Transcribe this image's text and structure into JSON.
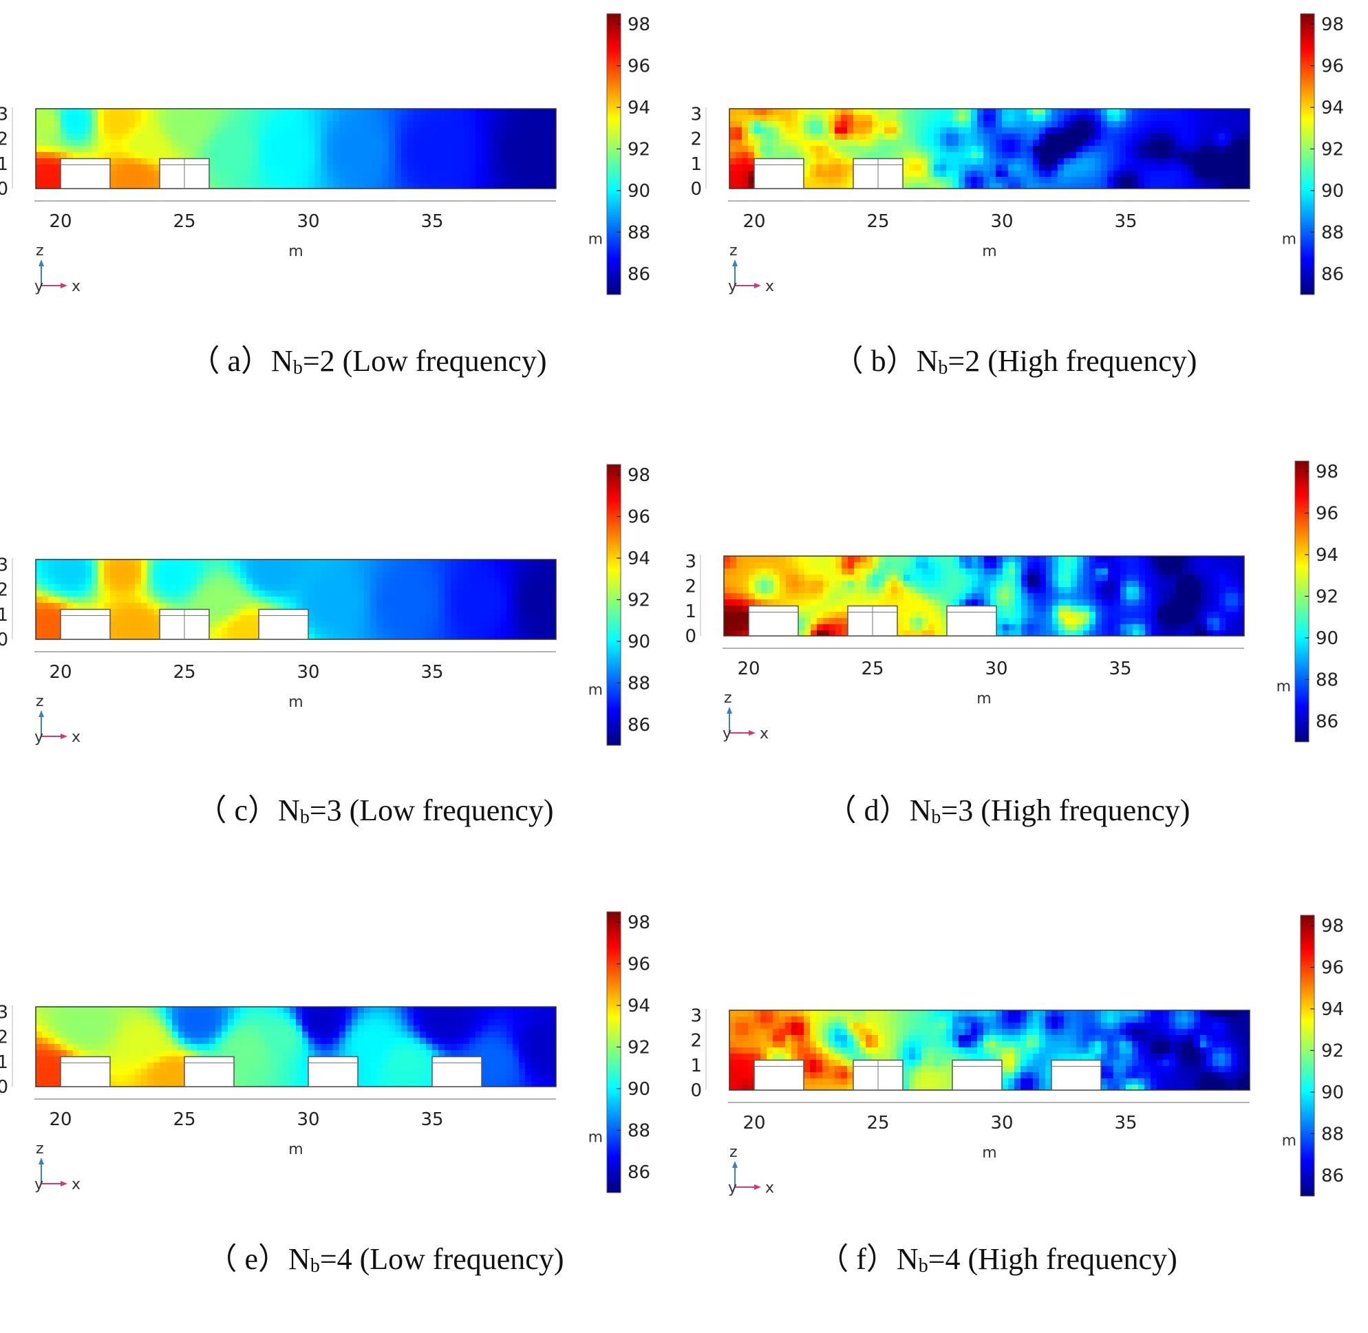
{
  "colormap_stops": [
    "#00007f",
    "#0000ff",
    "#007fff",
    "#00ffff",
    "#7fff7f",
    "#ffff00",
    "#ff7f00",
    "#ff0000",
    "#7f0000"
  ],
  "chart_data": [
    {
      "id": "a",
      "type": "heatmap",
      "frequency": "low",
      "caption": {
        "prefix": "（ a）",
        "n_base": "N",
        "n_sub": "b",
        "rest": "=2 (Low frequency)"
      },
      "x_ticks": [
        "20",
        "25",
        "30",
        "35"
      ],
      "x_ticks_values": [
        20,
        25,
        30,
        35
      ],
      "y_ticks": [
        "0",
        "1",
        "2",
        "3"
      ],
      "y_ticks_values": [
        0,
        1,
        2,
        3
      ],
      "xlabel": "m",
      "colorbar_unit": "m",
      "colorbar_ticks": [
        "86",
        "88",
        "90",
        "92",
        "94",
        "96",
        "98"
      ],
      "colorbar_ticks_values": [
        86,
        88,
        90,
        92,
        94,
        96,
        98
      ],
      "xlim": [
        19,
        40
      ],
      "zlim": [
        0,
        3.2
      ],
      "clim": [
        85,
        98.5
      ],
      "barriers": [
        {
          "x0": 20,
          "x1": 22,
          "h": 1.2,
          "split": false
        },
        {
          "x0": 24,
          "x1": 26,
          "h": 1.2,
          "split": true
        }
      ],
      "field_samples": [
        {
          "x": 19.5,
          "z": 0.4,
          "v": 96.5
        },
        {
          "x": 19.5,
          "z": 2.6,
          "v": 92.5
        },
        {
          "x": 20.5,
          "z": 2.7,
          "v": 90.0
        },
        {
          "x": 22.3,
          "z": 2.7,
          "v": 94.0
        },
        {
          "x": 23.0,
          "z": 0.5,
          "v": 95.0
        },
        {
          "x": 23.5,
          "z": 1.8,
          "v": 93.0
        },
        {
          "x": 25.0,
          "z": 2.5,
          "v": 92.0
        },
        {
          "x": 27.0,
          "z": 1.5,
          "v": 91.0
        },
        {
          "x": 29.0,
          "z": 1.5,
          "v": 90.0
        },
        {
          "x": 32.0,
          "z": 1.5,
          "v": 88.5
        },
        {
          "x": 35.0,
          "z": 1.5,
          "v": 87.0
        },
        {
          "x": 39.5,
          "z": 1.5,
          "v": 85.5
        }
      ]
    },
    {
      "id": "b",
      "type": "heatmap",
      "frequency": "high",
      "caption": {
        "prefix": "（ b）",
        "n_base": "N",
        "n_sub": "b",
        "rest": "=2 (High frequency)"
      },
      "x_ticks": [
        "20",
        "25",
        "30",
        "35"
      ],
      "x_ticks_values": [
        20,
        25,
        30,
        35
      ],
      "y_ticks": [
        "0",
        "1",
        "2",
        "3"
      ],
      "y_ticks_values": [
        0,
        1,
        2,
        3
      ],
      "xlabel": "m",
      "colorbar_unit": "m",
      "colorbar_ticks": [
        "86",
        "88",
        "90",
        "92",
        "94",
        "96",
        "98"
      ],
      "colorbar_ticks_values": [
        86,
        88,
        90,
        92,
        94,
        96,
        98
      ],
      "xlim": [
        19,
        40
      ],
      "zlim": [
        0,
        3.2
      ],
      "clim": [
        85,
        98.5
      ],
      "barriers": [
        {
          "x0": 20,
          "x1": 22,
          "h": 1.2,
          "split": false
        },
        {
          "x0": 24,
          "x1": 26,
          "h": 1.2,
          "split": true
        }
      ],
      "field_samples": [
        {
          "x": 19.5,
          "z": 0.5,
          "v": 97.0
        },
        {
          "x": 20.0,
          "z": 2.5,
          "v": 94.5
        },
        {
          "x": 22.5,
          "z": 1.0,
          "v": 94.0
        },
        {
          "x": 23.5,
          "z": 2.2,
          "v": 93.0
        },
        {
          "x": 25.5,
          "z": 1.8,
          "v": 91.5
        },
        {
          "x": 27.5,
          "z": 1.5,
          "v": 90.0
        },
        {
          "x": 30.0,
          "z": 1.5,
          "v": 89.0
        },
        {
          "x": 33.0,
          "z": 1.5,
          "v": 88.0
        },
        {
          "x": 36.0,
          "z": 1.5,
          "v": 87.0
        },
        {
          "x": 39.5,
          "z": 1.5,
          "v": 86.0
        }
      ]
    },
    {
      "id": "c",
      "type": "heatmap",
      "frequency": "low",
      "caption": {
        "prefix": "（ c）",
        "n_base": "N",
        "n_sub": "b",
        "rest": "=3 (Low frequency)"
      },
      "x_ticks": [
        "20",
        "25",
        "30",
        "35"
      ],
      "x_ticks_values": [
        20,
        25,
        30,
        35
      ],
      "y_ticks": [
        "0",
        "1",
        "2",
        "3"
      ],
      "y_ticks_values": [
        0,
        1,
        2,
        3
      ],
      "xlabel": "m",
      "colorbar_unit": "m",
      "colorbar_ticks": [
        "86",
        "88",
        "90",
        "92",
        "94",
        "96",
        "98"
      ],
      "colorbar_ticks_values": [
        86,
        88,
        90,
        92,
        94,
        96,
        98
      ],
      "xlim": [
        19,
        40
      ],
      "zlim": [
        0,
        3.2
      ],
      "clim": [
        85,
        98.5
      ],
      "barriers": [
        {
          "x0": 20,
          "x1": 22,
          "h": 1.2,
          "split": false
        },
        {
          "x0": 24,
          "x1": 26,
          "h": 1.2,
          "split": true
        },
        {
          "x0": 28,
          "x1": 30,
          "h": 1.2,
          "split": false
        }
      ],
      "field_samples": [
        {
          "x": 19.5,
          "z": 0.5,
          "v": 95.5
        },
        {
          "x": 20.5,
          "z": 2.7,
          "v": 89.5
        },
        {
          "x": 22.5,
          "z": 2.7,
          "v": 94.5
        },
        {
          "x": 23.0,
          "z": 0.5,
          "v": 94.5
        },
        {
          "x": 24.5,
          "z": 2.6,
          "v": 90.0
        },
        {
          "x": 26.5,
          "z": 1.5,
          "v": 92.0
        },
        {
          "x": 27.5,
          "z": 0.4,
          "v": 94.0
        },
        {
          "x": 28.5,
          "z": 2.7,
          "v": 89.0
        },
        {
          "x": 31.0,
          "z": 1.5,
          "v": 89.0
        },
        {
          "x": 34.0,
          "z": 1.5,
          "v": 88.0
        },
        {
          "x": 37.0,
          "z": 1.5,
          "v": 87.0
        },
        {
          "x": 39.5,
          "z": 1.5,
          "v": 85.5
        }
      ]
    },
    {
      "id": "d",
      "type": "heatmap",
      "frequency": "high",
      "caption": {
        "prefix": "（ d）",
        "n_base": "N",
        "n_sub": "b",
        "rest": "=3 (High frequency)"
      },
      "x_ticks": [
        "20",
        "25",
        "30",
        "35"
      ],
      "x_ticks_values": [
        20,
        25,
        30,
        35
      ],
      "y_ticks": [
        "0",
        "1",
        "2",
        "3"
      ],
      "y_ticks_values": [
        0,
        1,
        2,
        3
      ],
      "xlabel": "m",
      "colorbar_unit": "m",
      "colorbar_ticks": [
        "86",
        "88",
        "90",
        "92",
        "94",
        "96",
        "98"
      ],
      "colorbar_ticks_values": [
        86,
        88,
        90,
        92,
        94,
        96,
        98
      ],
      "xlim": [
        19,
        40
      ],
      "zlim": [
        0,
        3.2
      ],
      "clim": [
        85,
        98.5
      ],
      "barriers": [
        {
          "x0": 20,
          "x1": 22,
          "h": 1.2,
          "split": false
        },
        {
          "x0": 24,
          "x1": 26,
          "h": 1.2,
          "split": true
        },
        {
          "x0": 28,
          "x1": 30,
          "h": 1.2,
          "split": false
        }
      ],
      "field_samples": [
        {
          "x": 19.5,
          "z": 0.5,
          "v": 97.0
        },
        {
          "x": 20.0,
          "z": 2.5,
          "v": 94.5
        },
        {
          "x": 22.5,
          "z": 1.0,
          "v": 94.0
        },
        {
          "x": 23.5,
          "z": 2.3,
          "v": 93.0
        },
        {
          "x": 26.5,
          "z": 1.0,
          "v": 93.5
        },
        {
          "x": 27.5,
          "z": 2.3,
          "v": 91.0
        },
        {
          "x": 30.5,
          "z": 1.5,
          "v": 88.5
        },
        {
          "x": 33.0,
          "z": 1.5,
          "v": 88.0
        },
        {
          "x": 36.0,
          "z": 1.5,
          "v": 87.0
        },
        {
          "x": 39.5,
          "z": 1.5,
          "v": 86.0
        }
      ]
    },
    {
      "id": "e",
      "type": "heatmap",
      "frequency": "low",
      "caption": {
        "prefix": "（ e）",
        "n_base": "N",
        "n_sub": "b",
        "rest": "=4 (Low frequency)"
      },
      "x_ticks": [
        "20",
        "25",
        "30",
        "35"
      ],
      "x_ticks_values": [
        20,
        25,
        30,
        35
      ],
      "y_ticks": [
        "0",
        "1",
        "2",
        "3"
      ],
      "y_ticks_values": [
        0,
        1,
        2,
        3
      ],
      "xlabel": "m",
      "colorbar_unit": "m",
      "colorbar_ticks": [
        "86",
        "88",
        "90",
        "92",
        "94",
        "96",
        "98"
      ],
      "colorbar_ticks_values": [
        86,
        88,
        90,
        92,
        94,
        96,
        98
      ],
      "xlim": [
        19,
        40
      ],
      "zlim": [
        0,
        3.2
      ],
      "clim": [
        85,
        98.5
      ],
      "barriers": [
        {
          "x0": 20,
          "x1": 22,
          "h": 1.2,
          "split": false
        },
        {
          "x0": 25,
          "x1": 27,
          "h": 1.2,
          "split": false
        },
        {
          "x0": 30,
          "x1": 32,
          "h": 1.2,
          "split": false
        },
        {
          "x0": 35,
          "x1": 37,
          "h": 1.2,
          "split": false
        }
      ],
      "field_samples": [
        {
          "x": 19.5,
          "z": 0.5,
          "v": 96.0
        },
        {
          "x": 21.0,
          "z": 2.5,
          "v": 92.0
        },
        {
          "x": 23.5,
          "z": 1.8,
          "v": 93.0
        },
        {
          "x": 24.5,
          "z": 0.5,
          "v": 94.5
        },
        {
          "x": 25.5,
          "z": 2.6,
          "v": 88.0
        },
        {
          "x": 27.5,
          "z": 1.5,
          "v": 91.5
        },
        {
          "x": 29.0,
          "z": 2.0,
          "v": 91.0
        },
        {
          "x": 30.5,
          "z": 2.6,
          "v": 86.0
        },
        {
          "x": 32.5,
          "z": 1.8,
          "v": 90.0
        },
        {
          "x": 34.0,
          "z": 1.0,
          "v": 90.5
        },
        {
          "x": 35.5,
          "z": 2.6,
          "v": 86.0
        },
        {
          "x": 37.5,
          "z": 1.0,
          "v": 88.0
        },
        {
          "x": 39.5,
          "z": 1.5,
          "v": 86.0
        }
      ]
    },
    {
      "id": "f",
      "type": "heatmap",
      "frequency": "high",
      "caption": {
        "prefix": "（ f）",
        "n_base": "N",
        "n_sub": "b",
        "rest": "=4 (High frequency)"
      },
      "x_ticks": [
        "20",
        "25",
        "30",
        "35"
      ],
      "x_ticks_values": [
        20,
        25,
        30,
        35
      ],
      "y_ticks": [
        "0",
        "1",
        "2",
        "3"
      ],
      "y_ticks_values": [
        0,
        1,
        2,
        3
      ],
      "xlabel": "m",
      "colorbar_unit": "m",
      "colorbar_ticks": [
        "86",
        "88",
        "90",
        "92",
        "94",
        "96",
        "98"
      ],
      "colorbar_ticks_values": [
        86,
        88,
        90,
        92,
        94,
        96,
        98
      ],
      "xlim": [
        19,
        40
      ],
      "zlim": [
        0,
        3.2
      ],
      "clim": [
        85,
        98.5
      ],
      "barriers": [
        {
          "x0": 20,
          "x1": 22,
          "h": 1.2,
          "split": false
        },
        {
          "x0": 24,
          "x1": 26,
          "h": 1.2,
          "split": true
        },
        {
          "x0": 28,
          "x1": 30,
          "h": 1.2,
          "split": false
        },
        {
          "x0": 32,
          "x1": 34,
          "h": 1.2,
          "split": false
        }
      ],
      "field_samples": [
        {
          "x": 19.5,
          "z": 0.5,
          "v": 97.0
        },
        {
          "x": 20.0,
          "z": 2.5,
          "v": 94.5
        },
        {
          "x": 22.5,
          "z": 1.0,
          "v": 94.5
        },
        {
          "x": 23.5,
          "z": 2.3,
          "v": 93.0
        },
        {
          "x": 26.5,
          "z": 1.0,
          "v": 93.0
        },
        {
          "x": 27.5,
          "z": 2.3,
          "v": 91.0
        },
        {
          "x": 30.5,
          "z": 1.5,
          "v": 90.0
        },
        {
          "x": 32.0,
          "z": 1.5,
          "v": 89.0
        },
        {
          "x": 34.5,
          "z": 1.5,
          "v": 86.5
        },
        {
          "x": 37.0,
          "z": 1.5,
          "v": 86.0
        },
        {
          "x": 39.5,
          "z": 1.5,
          "v": 85.5
        }
      ]
    }
  ]
}
